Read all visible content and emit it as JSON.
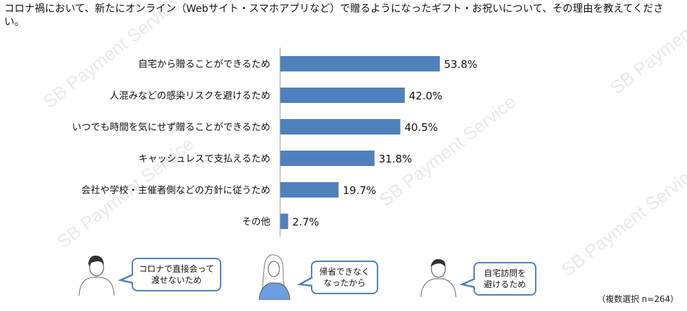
{
  "title": "コロナ禍において、新たにオンライン（Webサイト・スマホアプリなど）で贈るようになったギフト・お祝いについて、その理由を教えてください。",
  "watermark": "SB Payment Service",
  "chart_data": {
    "type": "bar",
    "orientation": "horizontal",
    "categories": [
      "自宅から贈ることができるため",
      "人混みなどの感染リスクを避けるため",
      "いつでも時間を気にせず贈ることができるため",
      "キャッシュレスで支払えるため",
      "会社や学校・主催者側などの方針に従うため",
      "その他"
    ],
    "values": [
      53.8,
      42.0,
      40.5,
      31.8,
      19.7,
      2.7
    ],
    "labels": [
      "53.8%",
      "42.0%",
      "40.5%",
      "31.8%",
      "19.7%",
      "2.7%"
    ],
    "bar_color": "#4f81bd",
    "grid": false
  },
  "comments": [
    {
      "text_lines": [
        "コロナで直接会って",
        "渡せないため"
      ]
    },
    {
      "text_lines": [
        "帰省できなく",
        "なったから"
      ]
    },
    {
      "text_lines": [
        "自宅訪問を",
        "避けるため"
      ]
    }
  ],
  "note": "（複数選択 n=264）"
}
